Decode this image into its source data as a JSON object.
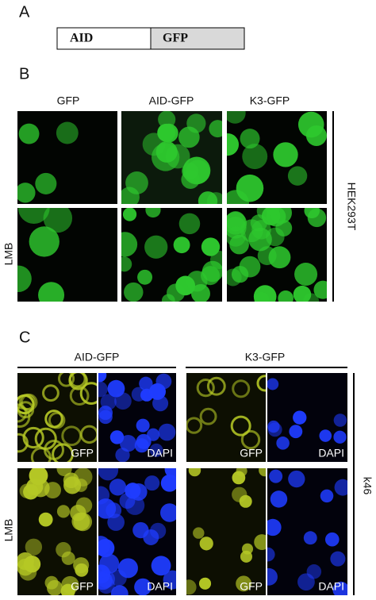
{
  "panel_a": {
    "label": "A",
    "construct": [
      "AID",
      "GFP"
    ]
  },
  "panel_b": {
    "label": "B",
    "columns": [
      "GFP",
      "AID-GFP",
      "K3-GFP"
    ],
    "row_label": "LMB",
    "side_label": "HEK293T"
  },
  "panel_c": {
    "label": "C",
    "groups": [
      "AID-GFP",
      "K3-GFP"
    ],
    "channels": [
      "GFP",
      "DAPI"
    ],
    "row_label": "LMB",
    "side_label": "k46"
  }
}
